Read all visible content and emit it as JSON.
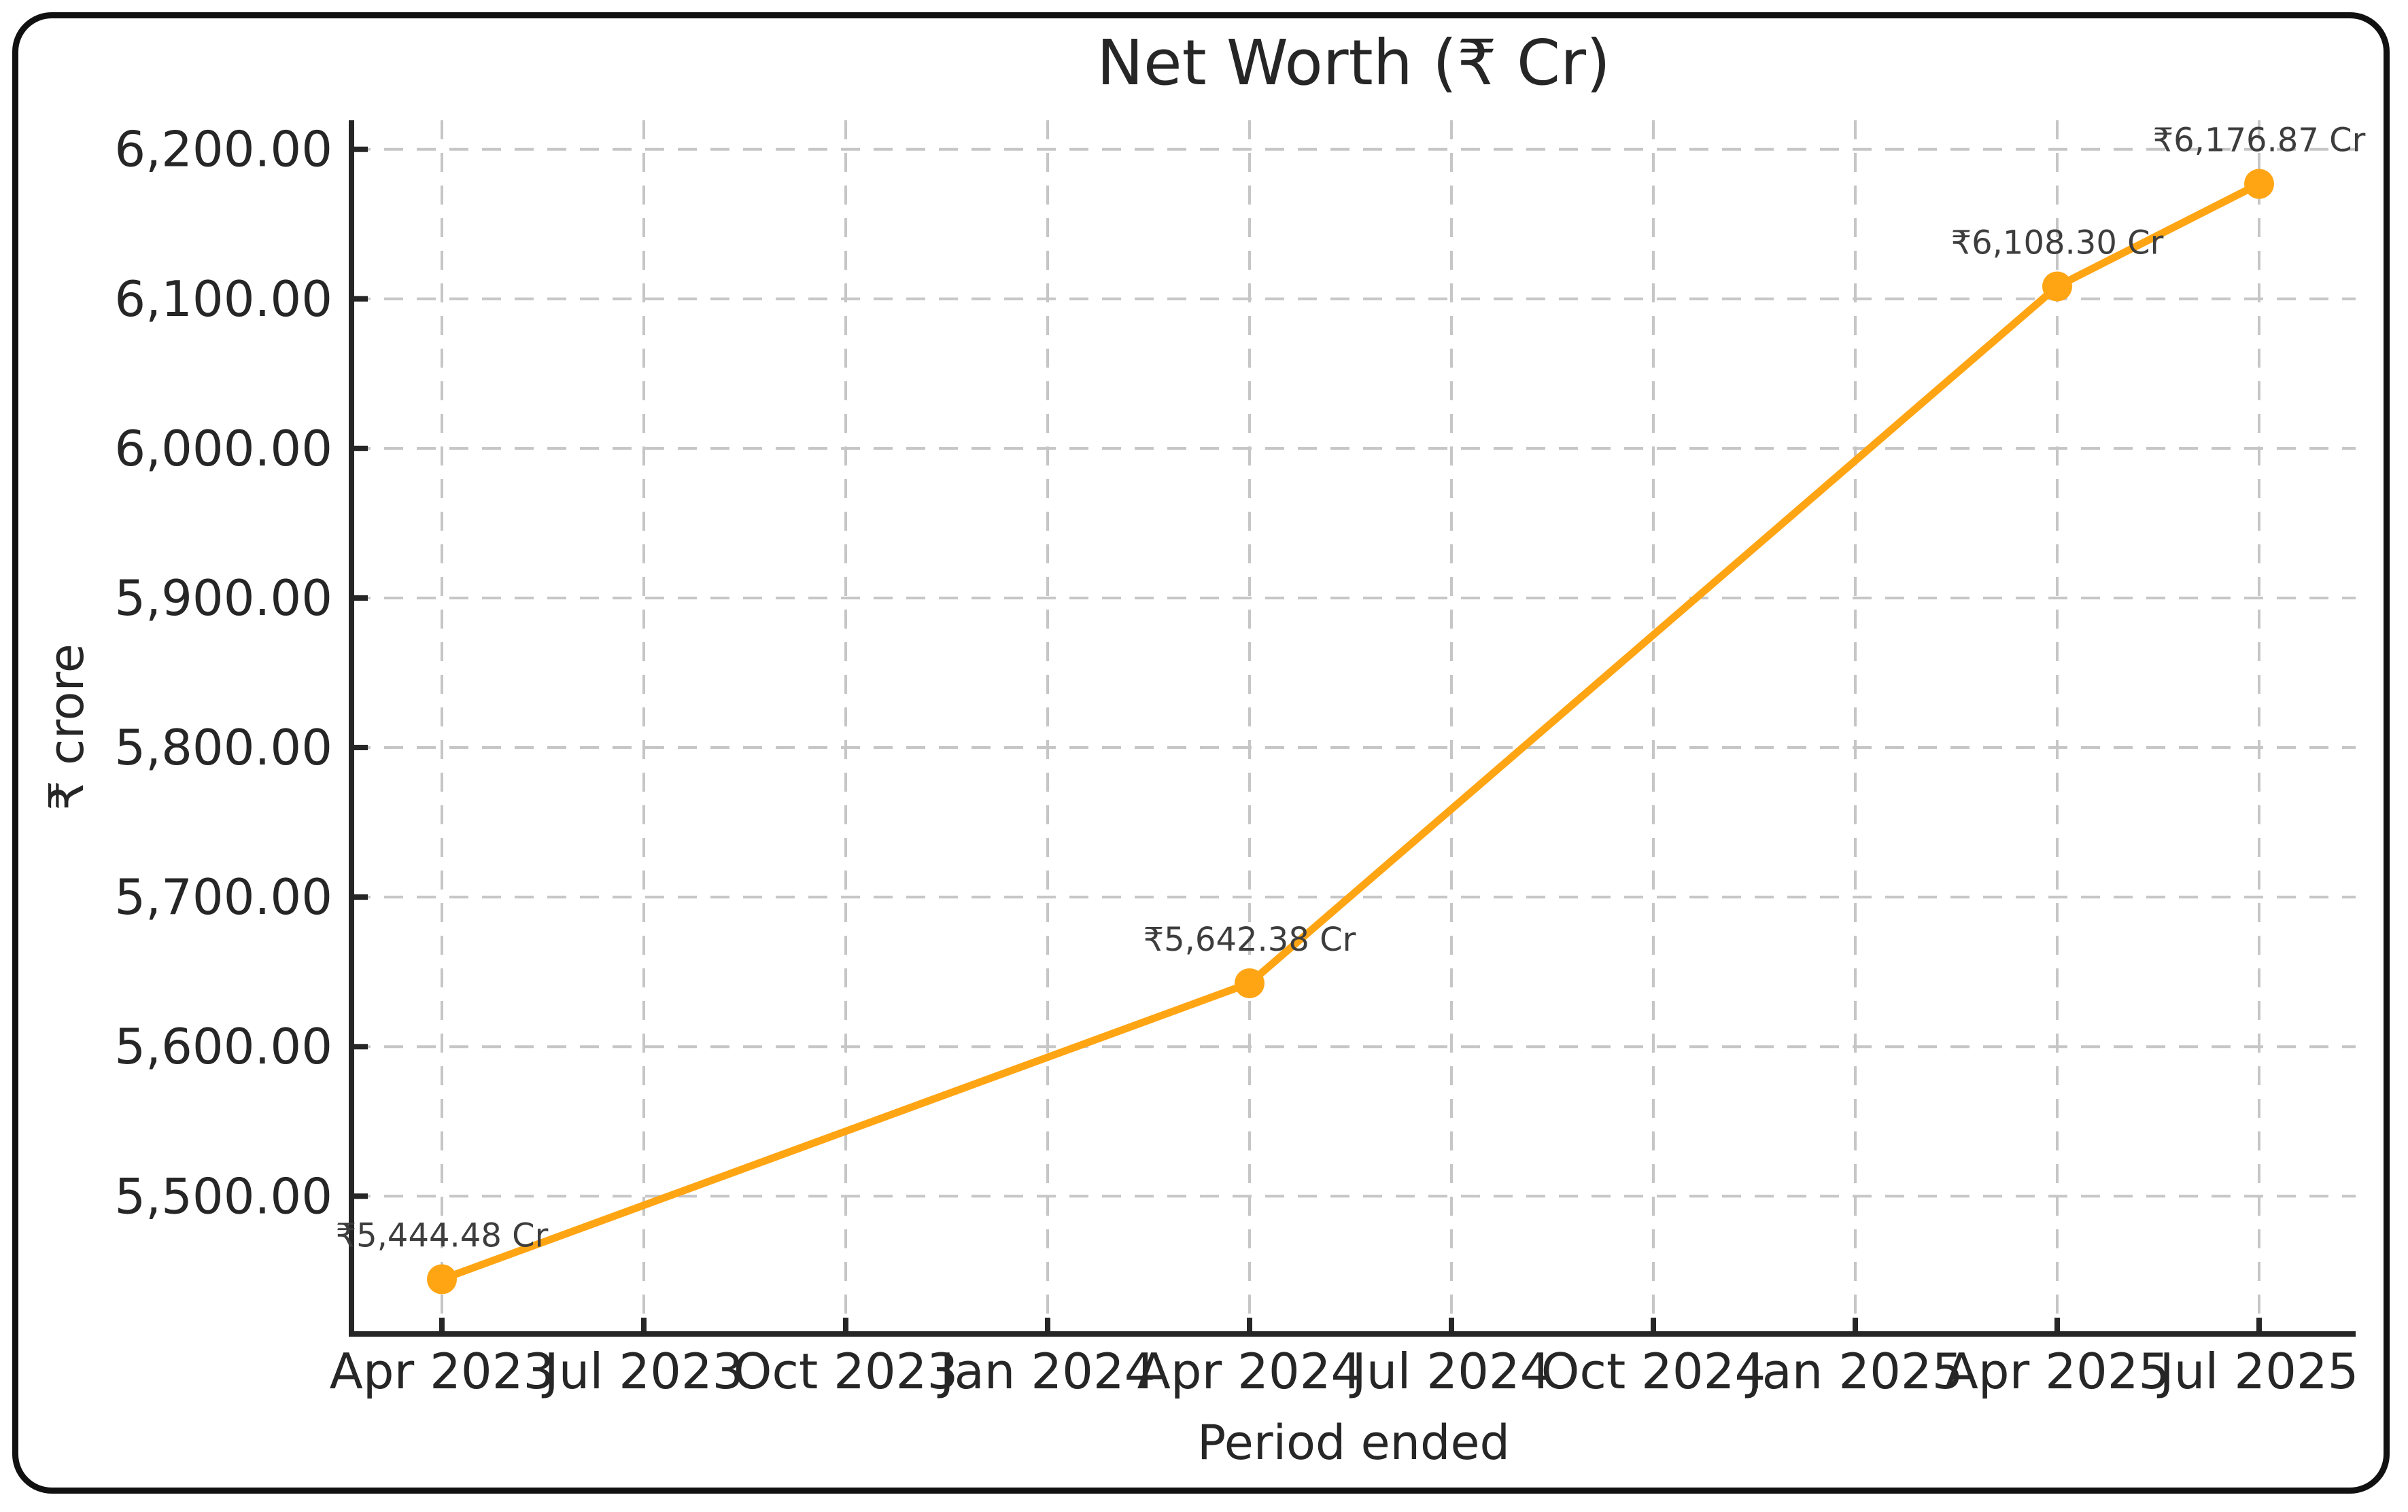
{
  "figure": {
    "background": "#ffffff",
    "border_color": "#111111"
  },
  "chart_data": {
    "type": "line",
    "title": "Net Worth (₹ Cr)",
    "xlabel": "Period ended",
    "ylabel": "₹ crore",
    "grid": true,
    "legend": false,
    "x_ticks": [
      "Apr 2023",
      "Jul 2023",
      "Oct 2023",
      "Jan 2024",
      "Apr 2024",
      "Jul 2024",
      "Oct 2024",
      "Jan 2025",
      "Apr 2025",
      "Jul 2025"
    ],
    "y_ticks": {
      "values": [
        5500,
        5600,
        5700,
        5800,
        5900,
        6000,
        6100,
        6200
      ],
      "labels": [
        "5,500.00",
        "5,600.00",
        "5,700.00",
        "5,800.00",
        "5,900.00",
        "6,000.00",
        "6,100.00",
        "6,200.00"
      ]
    },
    "ylim": [
      5407.9,
      6213.5
    ],
    "series": [
      {
        "name": "Net Worth",
        "color": "#ffa513",
        "points": [
          {
            "x": "Apr 2023",
            "x_tick_index": 0,
            "y": 5444.48,
            "label": "₹5,444.48 Cr"
          },
          {
            "x": "Apr 2024",
            "x_tick_index": 4,
            "y": 5642.38,
            "label": "₹5,642.38 Cr"
          },
          {
            "x": "Apr 2025",
            "x_tick_index": 8,
            "y": 6108.3,
            "label": "₹6,108.30 Cr"
          },
          {
            "x": "Jul 2025",
            "x_tick_index": 9,
            "y": 6176.87,
            "label": "₹6,176.87 Cr"
          }
        ]
      }
    ],
    "colors": {
      "grid": "#c6c6c6",
      "axis": "#262626",
      "tick_label": "#262626",
      "annotation": "#3d3d3d"
    }
  }
}
